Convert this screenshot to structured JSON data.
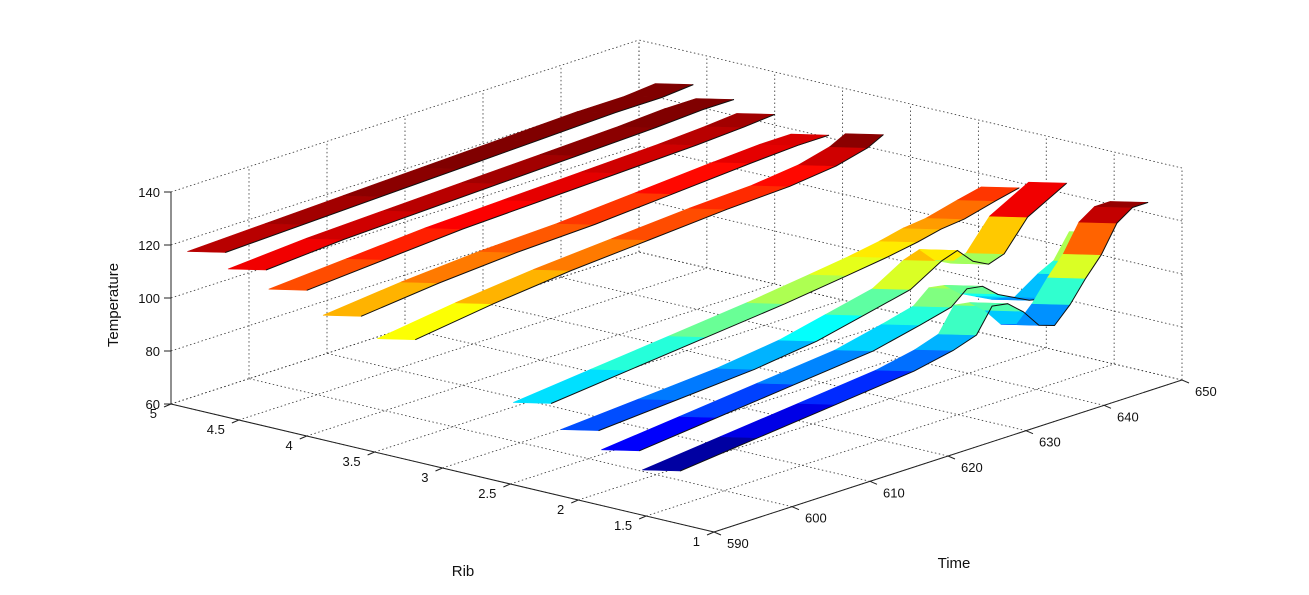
{
  "chart_data": {
    "type": "surface",
    "xlabel": "Rib",
    "ylabel": "Time",
    "zlabel": "Temperature",
    "xlim": [
      1,
      5
    ],
    "ylim": [
      590,
      650
    ],
    "zlim": [
      60,
      140
    ],
    "x_ticks": [
      "1",
      "1.5",
      "2",
      "2.5",
      "3",
      "3.5",
      "4",
      "4.5",
      "5"
    ],
    "y_ticks": [
      "590",
      "600",
      "610",
      "620",
      "630",
      "640",
      "650"
    ],
    "z_ticks": [
      "60",
      "80",
      "100",
      "120",
      "140"
    ],
    "grid": true,
    "colormap": "jet",
    "sheets": [
      {
        "rib": 1.25,
        "points": [
          [
            590,
            80
          ],
          [
            600,
            83
          ],
          [
            610,
            86
          ],
          [
            620,
            89
          ],
          [
            625,
            92
          ],
          [
            628,
            95
          ],
          [
            630,
            104
          ],
          [
            632,
            103
          ],
          [
            634,
            98
          ],
          [
            636,
            91
          ],
          [
            638,
            89
          ],
          [
            640,
            95
          ],
          [
            642,
            103
          ],
          [
            644,
            110
          ],
          [
            646,
            120
          ],
          [
            648,
            124
          ],
          [
            650,
            124
          ]
        ]
      },
      {
        "rib": 1.55,
        "points": [
          [
            590,
            84
          ],
          [
            600,
            87
          ],
          [
            610,
            90
          ],
          [
            620,
            93
          ],
          [
            626,
            97
          ],
          [
            630,
            100
          ],
          [
            632,
            105
          ],
          [
            634,
            104
          ],
          [
            636,
            99
          ],
          [
            638,
            96
          ],
          [
            640,
            93
          ],
          [
            643,
            91
          ],
          [
            646,
            97
          ],
          [
            648,
            100
          ],
          [
            650,
            109
          ]
        ]
      },
      {
        "rib": 1.85,
        "points": [
          [
            590,
            88
          ],
          [
            600,
            90
          ],
          [
            610,
            92
          ],
          [
            618,
            95
          ],
          [
            624,
            99
          ],
          [
            630,
            103
          ],
          [
            634,
            110
          ],
          [
            636,
            112
          ],
          [
            638,
            106
          ],
          [
            640,
            103
          ],
          [
            642,
            105
          ],
          [
            645,
            116
          ],
          [
            650,
            124
          ]
        ]
      },
      {
        "rib": 2.2,
        "points": [
          [
            590,
            94
          ],
          [
            600,
            97
          ],
          [
            610,
            100
          ],
          [
            620,
            103
          ],
          [
            628,
            106
          ],
          [
            633,
            108
          ],
          [
            637,
            110
          ],
          [
            640,
            112
          ],
          [
            643,
            113
          ],
          [
            647,
            116
          ],
          [
            650,
            118
          ]
        ]
      },
      {
        "rib": 3.2,
        "points": [
          [
            590,
            106
          ],
          [
            600,
            110
          ],
          [
            610,
            113
          ],
          [
            620,
            115
          ],
          [
            630,
            117
          ],
          [
            638,
            118
          ],
          [
            644,
            120
          ],
          [
            648,
            123
          ],
          [
            650,
            126
          ]
        ]
      },
      {
        "rib": 3.6,
        "points": [
          [
            590,
            110
          ],
          [
            600,
            113
          ],
          [
            610,
            115
          ],
          [
            620,
            116
          ],
          [
            630,
            118
          ],
          [
            640,
            120
          ],
          [
            646,
            121
          ],
          [
            650,
            121
          ]
        ]
      },
      {
        "rib": 4.0,
        "points": [
          [
            590,
            115
          ],
          [
            600,
            117
          ],
          [
            610,
            119
          ],
          [
            620,
            120
          ],
          [
            630,
            121
          ],
          [
            640,
            122
          ],
          [
            646,
            123
          ],
          [
            650,
            124
          ]
        ]
      },
      {
        "rib": 4.3,
        "points": [
          [
            590,
            119
          ],
          [
            600,
            121
          ],
          [
            610,
            122
          ],
          [
            620,
            123
          ],
          [
            630,
            124
          ],
          [
            640,
            125
          ],
          [
            646,
            126
          ],
          [
            650,
            126
          ]
        ]
      },
      {
        "rib": 4.6,
        "points": [
          [
            590,
            122
          ],
          [
            600,
            123
          ],
          [
            610,
            124
          ],
          [
            620,
            125
          ],
          [
            630,
            126
          ],
          [
            640,
            127
          ],
          [
            646,
            127
          ],
          [
            650,
            128
          ]
        ]
      }
    ]
  }
}
